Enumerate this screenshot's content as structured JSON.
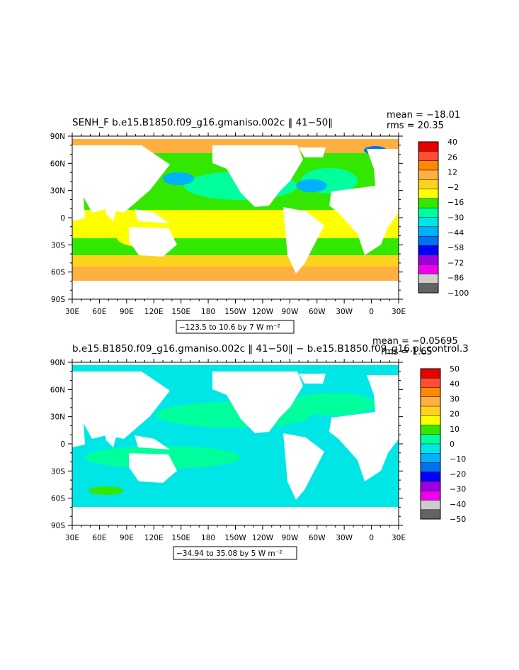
{
  "colors": {
    "ocean_ramp": [
      "#636363",
      "#cdcdcd",
      "#ee00ee",
      "#9a00e0",
      "#0000ff",
      "#0071f2",
      "#00b2fb",
      "#00e6e6",
      "#00ff9c",
      "#33e800",
      "#ffff00",
      "#ffd21e",
      "#ffb040",
      "#ff8800",
      "#ff4d33",
      "#e60000"
    ],
    "land": "#ffffff"
  },
  "chart_data": [
    {
      "type": "heatmap",
      "title": "SENH_F  b.e15.B1850.f09_g16.gmaniso.002c  ‖ 41−50‖",
      "stats": {
        "mean": "mean =  −18.01",
        "rms": "rms =  20.35"
      },
      "x_ticks": [
        "30E",
        "60E",
        "90E",
        "120E",
        "150E",
        "180",
        "150W",
        "120W",
        "90W",
        "60W",
        "30W",
        "0",
        "30E"
      ],
      "y_ticks": [
        "90N",
        "60N",
        "30N",
        "0",
        "30S",
        "60S",
        "90S"
      ],
      "range_label": "−123.5 to 10.6 by 7  W m⁻²",
      "colorbar_labels": [
        "40",
        "26",
        "12",
        "−2",
        "−16",
        "−30",
        "−44",
        "−58",
        "−72",
        "−86",
        "−100"
      ],
      "palette": [
        "#636363",
        "#cdcdcd",
        "#ee00ee",
        "#9a00e0",
        "#0000ff",
        "#0071f2",
        "#00b2fb",
        "#00e6e6",
        "#00ff9c",
        "#33e800",
        "#ffff00",
        "#ffd21e",
        "#ffb040",
        "#ff8800",
        "#ff4d33",
        "#e60000"
      ]
    },
    {
      "type": "heatmap",
      "title": "b.e15.B1850.f09_g16.gmaniso.002c  ‖ 41−50‖  −  b.e15.B1850.f09_g16.pi_control.3",
      "stats": {
        "mean": "mean =  −0.05695",
        "rms": "rms =  1.65"
      },
      "x_ticks": [
        "30E",
        "60E",
        "90E",
        "120E",
        "150E",
        "180",
        "150W",
        "120W",
        "90W",
        "60W",
        "30W",
        "0",
        "30E"
      ],
      "y_ticks": [
        "90N",
        "60N",
        "30N",
        "0",
        "30S",
        "60S",
        "90S"
      ],
      "range_label": "−34.94 to 35.08 by 5  W m⁻²",
      "colorbar_labels": [
        "50",
        "40",
        "30",
        "20",
        "10",
        "0",
        "−10",
        "−20",
        "−30",
        "−40",
        "−50"
      ],
      "palette": [
        "#636363",
        "#cdcdcd",
        "#ee00ee",
        "#9a00e0",
        "#0000ff",
        "#0071f2",
        "#00b2fb",
        "#00e6e6",
        "#00ff9c",
        "#33e800",
        "#ffff00",
        "#ffd21e",
        "#ffb040",
        "#ff8800",
        "#ff4d33",
        "#e60000"
      ]
    }
  ]
}
